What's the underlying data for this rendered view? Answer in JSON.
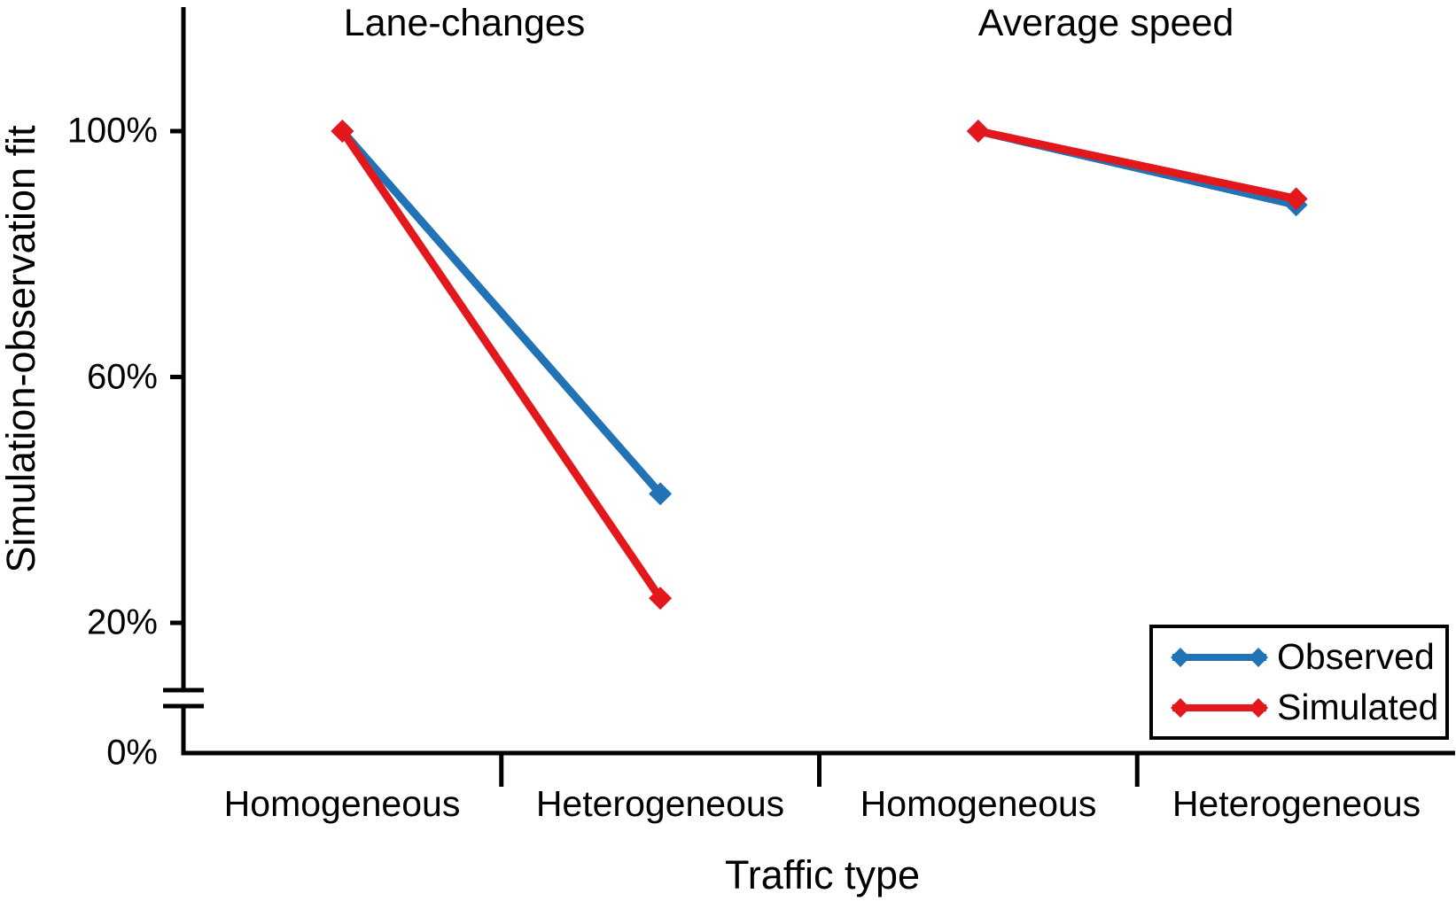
{
  "chart_data": {
    "type": "line",
    "xlabel": "Traffic type",
    "ylabel": "Simulation-observation fit",
    "axis_break": true,
    "grid": false,
    "ylim": [
      0,
      115
    ],
    "y_ticks": [
      {
        "label": "100%",
        "value": 100
      },
      {
        "label": "60%",
        "value": 60
      },
      {
        "label": "20%",
        "value": 20
      },
      {
        "label": "0%",
        "value": 0
      }
    ],
    "panels": [
      {
        "title": "Lane-changes",
        "categories": [
          "Homogeneous",
          "Heterogeneous"
        ],
        "series": [
          {
            "name": "Observed",
            "color": "#2272b6",
            "values": [
              100,
              41
            ]
          },
          {
            "name": "Simulated",
            "color": "#e3181d",
            "values": [
              100,
              24
            ]
          }
        ]
      },
      {
        "title": "Average speed",
        "categories": [
          "Homogeneous",
          "Heterogeneous"
        ],
        "series": [
          {
            "name": "Observed",
            "color": "#2272b6",
            "values": [
              100,
              88
            ]
          },
          {
            "name": "Simulated",
            "color": "#e3181d",
            "values": [
              100,
              89
            ]
          }
        ]
      }
    ],
    "legend": {
      "position": "bottom-right",
      "entries": [
        {
          "label": "Observed",
          "color": "#2272b6"
        },
        {
          "label": "Simulated",
          "color": "#e3181d"
        }
      ]
    },
    "axis_color": "#000000",
    "marker": "diamond"
  }
}
